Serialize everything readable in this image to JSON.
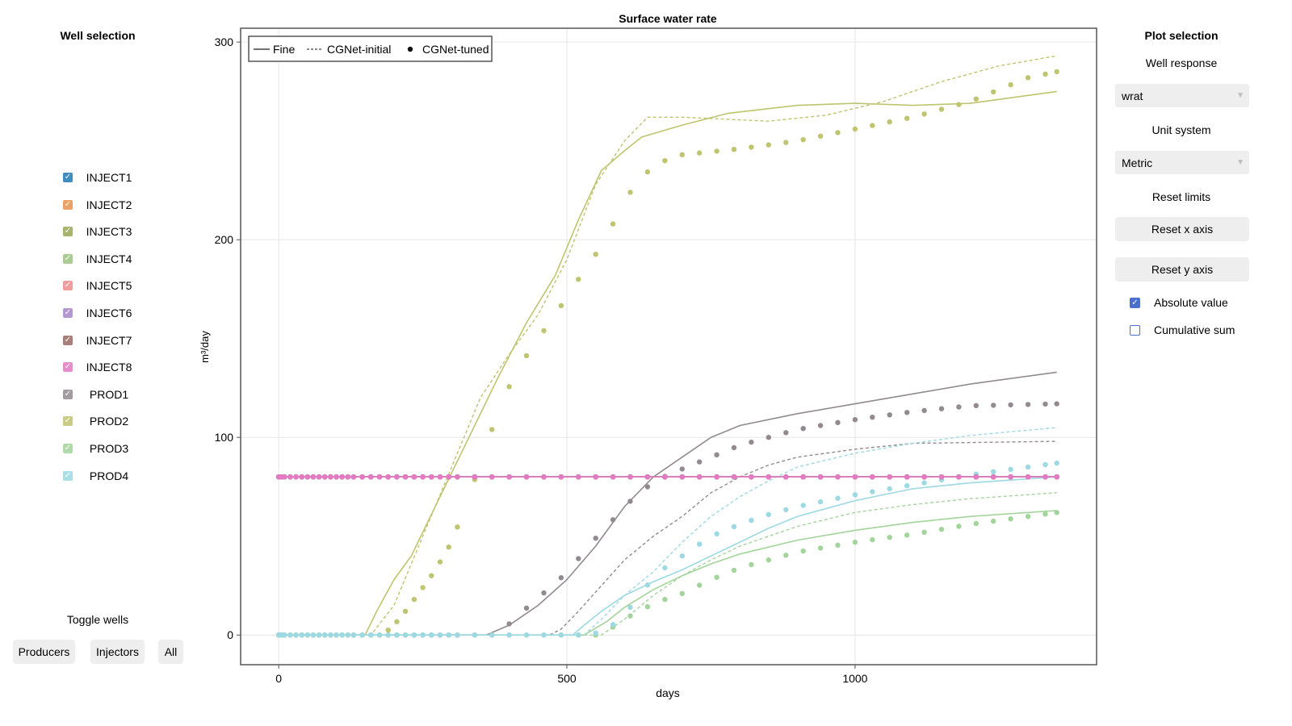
{
  "left_panel": {
    "title": "Well selection",
    "wells": [
      {
        "name": "INJECT1",
        "checked": true,
        "color": "#1f77b4"
      },
      {
        "name": "INJECT2",
        "checked": true,
        "color": "#e8924a"
      },
      {
        "name": "INJECT3",
        "checked": true,
        "color": "#98a854"
      },
      {
        "name": "INJECT4",
        "checked": true,
        "color": "#9cc37f"
      },
      {
        "name": "INJECT5",
        "checked": true,
        "color": "#f08c8c"
      },
      {
        "name": "INJECT6",
        "checked": true,
        "color": "#a986c9"
      },
      {
        "name": "INJECT7",
        "checked": true,
        "color": "#9a6a62"
      },
      {
        "name": "INJECT8",
        "checked": true,
        "color": "#e57ac4"
      },
      {
        "name": "PROD1",
        "checked": true,
        "color": "#938a8f"
      },
      {
        "name": "PROD2",
        "checked": true,
        "color": "#bfc46f"
      },
      {
        "name": "PROD3",
        "checked": true,
        "color": "#a3d49b"
      },
      {
        "name": "PROD4",
        "checked": true,
        "color": "#9dd9e2"
      }
    ],
    "toggle_title": "Toggle wells",
    "buttons": {
      "producers": "Producers",
      "injectors": "Injectors",
      "all": "All"
    }
  },
  "right_panel": {
    "title": "Plot selection",
    "well_response_label": "Well response",
    "well_response_value": "wrat",
    "unit_system_label": "Unit system",
    "unit_system_value": "Metric",
    "reset_limits_label": "Reset limits",
    "reset_x": "Reset x axis",
    "reset_y": "Reset y axis",
    "absolute_value": {
      "label": "Absolute value",
      "checked": true
    },
    "cumulative_sum": {
      "label": "Cumulative sum",
      "checked": false
    },
    "accent": "#4a6fd0"
  },
  "chart_data": {
    "type": "line",
    "title": "Surface water rate",
    "xlabel": "days",
    "ylabel": "m³/day",
    "xlim": [
      -66,
      1419
    ],
    "ylim": [
      -15,
      307
    ],
    "xticks": [
      0,
      500,
      1000
    ],
    "yticks": [
      0,
      100,
      200,
      300
    ],
    "grid": true,
    "legend": {
      "placement": "top-left",
      "entries": [
        {
          "label": "Fine",
          "style": "solid"
        },
        {
          "label": "CGNet-initial",
          "style": "dashed"
        },
        {
          "label": "CGNet-tuned",
          "style": "dots"
        }
      ]
    },
    "tuned_times": [
      0,
      1,
      3,
      5,
      10,
      20,
      30,
      40,
      50,
      60,
      70,
      80,
      90,
      100,
      110,
      120,
      130,
      145,
      160,
      175,
      190,
      205,
      220,
      235,
      250,
      265,
      280,
      295,
      310,
      340,
      370,
      400,
      430,
      460,
      490,
      520,
      550,
      580,
      610,
      640,
      670,
      700,
      730,
      760,
      790,
      820,
      850,
      880,
      910,
      940,
      970,
      1000,
      1030,
      1060,
      1090,
      1120,
      1150,
      1180,
      1210,
      1240,
      1270,
      1300,
      1330,
      1350
    ],
    "series": [
      {
        "name": "INJECT1",
        "fine": [
          [
            0,
            80
          ],
          [
            1350,
            80
          ]
        ],
        "initial": [
          [
            0,
            80
          ],
          [
            1350,
            80
          ]
        ],
        "tuned": [
          [
            0,
            80
          ],
          [
            1350,
            80
          ]
        ]
      },
      {
        "name": "INJECT2",
        "fine": [
          [
            0,
            80
          ],
          [
            1350,
            80
          ]
        ],
        "initial": [
          [
            0,
            80
          ],
          [
            1350,
            80
          ]
        ],
        "tuned": [
          [
            0,
            80
          ],
          [
            1350,
            80
          ]
        ]
      },
      {
        "name": "INJECT3",
        "fine": [
          [
            0,
            80
          ],
          [
            1350,
            80
          ]
        ],
        "initial": [
          [
            0,
            80
          ],
          [
            1350,
            80
          ]
        ],
        "tuned": [
          [
            0,
            80
          ],
          [
            1350,
            80
          ]
        ]
      },
      {
        "name": "INJECT4",
        "fine": [
          [
            0,
            80
          ],
          [
            1350,
            80
          ]
        ],
        "initial": [
          [
            0,
            80
          ],
          [
            1350,
            80
          ]
        ],
        "tuned": [
          [
            0,
            80
          ],
          [
            1350,
            80
          ]
        ]
      },
      {
        "name": "INJECT5",
        "fine": [
          [
            0,
            80
          ],
          [
            1350,
            80
          ]
        ],
        "initial": [
          [
            0,
            80
          ],
          [
            1350,
            80
          ]
        ],
        "tuned": [
          [
            0,
            80
          ],
          [
            1350,
            80
          ]
        ]
      },
      {
        "name": "INJECT6",
        "fine": [
          [
            0,
            80
          ],
          [
            1350,
            80
          ]
        ],
        "initial": [
          [
            0,
            80
          ],
          [
            1350,
            80
          ]
        ],
        "tuned": [
          [
            0,
            80
          ],
          [
            1350,
            80
          ]
        ]
      },
      {
        "name": "INJECT7",
        "fine": [
          [
            0,
            80
          ],
          [
            1350,
            80
          ]
        ],
        "initial": [
          [
            0,
            80
          ],
          [
            1350,
            80
          ]
        ],
        "tuned": [
          [
            0,
            80
          ],
          [
            1350,
            80
          ]
        ]
      },
      {
        "name": "INJECT8",
        "fine": [
          [
            0,
            80
          ],
          [
            1350,
            80
          ]
        ],
        "initial": [
          [
            0,
            80
          ],
          [
            1350,
            80
          ]
        ],
        "tuned": [
          [
            0,
            80
          ],
          [
            1350,
            80
          ]
        ]
      },
      {
        "name": "PROD1",
        "fine": [
          [
            0,
            0
          ],
          [
            360,
            0
          ],
          [
            400,
            5
          ],
          [
            450,
            15
          ],
          [
            500,
            28
          ],
          [
            550,
            45
          ],
          [
            600,
            65
          ],
          [
            650,
            80
          ],
          [
            700,
            90
          ],
          [
            750,
            100
          ],
          [
            800,
            106
          ],
          [
            900,
            112
          ],
          [
            1000,
            117
          ],
          [
            1100,
            122
          ],
          [
            1200,
            127
          ],
          [
            1350,
            133
          ]
        ],
        "initial": [
          [
            0,
            0
          ],
          [
            470,
            0
          ],
          [
            490,
            3
          ],
          [
            520,
            12
          ],
          [
            560,
            25
          ],
          [
            600,
            38
          ],
          [
            650,
            50
          ],
          [
            700,
            60
          ],
          [
            750,
            72
          ],
          [
            800,
            80
          ],
          [
            850,
            86
          ],
          [
            900,
            90
          ],
          [
            1000,
            94
          ],
          [
            1100,
            97
          ],
          [
            1350,
            98
          ]
        ],
        "tuned": [
          [
            0,
            0
          ],
          [
            370,
            0
          ],
          [
            390,
            3
          ],
          [
            420,
            11
          ],
          [
            450,
            19
          ],
          [
            480,
            26
          ],
          [
            510,
            35
          ],
          [
            540,
            46
          ],
          [
            570,
            55
          ],
          [
            600,
            65
          ],
          [
            630,
            73
          ],
          [
            660,
            79
          ],
          [
            700,
            84
          ],
          [
            750,
            90
          ],
          [
            800,
            96
          ],
          [
            850,
            100
          ],
          [
            900,
            104
          ],
          [
            1000,
            109
          ],
          [
            1100,
            113
          ],
          [
            1200,
            116
          ],
          [
            1350,
            117
          ]
        ]
      },
      {
        "name": "PROD2",
        "fine": [
          [
            0,
            0
          ],
          [
            150,
            0
          ],
          [
            170,
            12
          ],
          [
            200,
            28
          ],
          [
            230,
            40
          ],
          [
            280,
            70
          ],
          [
            330,
            100
          ],
          [
            380,
            130
          ],
          [
            430,
            158
          ],
          [
            480,
            182
          ],
          [
            520,
            210
          ],
          [
            560,
            235
          ],
          [
            600,
            245
          ],
          [
            630,
            252
          ],
          [
            700,
            258
          ],
          [
            780,
            264
          ],
          [
            900,
            268
          ],
          [
            1000,
            269
          ],
          [
            1100,
            268
          ],
          [
            1200,
            269
          ],
          [
            1300,
            273
          ],
          [
            1350,
            275
          ]
        ],
        "initial": [
          [
            0,
            0
          ],
          [
            160,
            0
          ],
          [
            200,
            15
          ],
          [
            250,
            50
          ],
          [
            300,
            85
          ],
          [
            350,
            120
          ],
          [
            400,
            142
          ],
          [
            450,
            162
          ],
          [
            500,
            190
          ],
          [
            550,
            228
          ],
          [
            600,
            250
          ],
          [
            640,
            262
          ],
          [
            700,
            262
          ],
          [
            850,
            260
          ],
          [
            950,
            263
          ],
          [
            1050,
            270
          ],
          [
            1150,
            280
          ],
          [
            1250,
            288
          ],
          [
            1350,
            293
          ]
        ],
        "tuned": [
          [
            0,
            0
          ],
          [
            180,
            0
          ],
          [
            200,
            5
          ],
          [
            220,
            12
          ],
          [
            240,
            20
          ],
          [
            270,
            32
          ],
          [
            300,
            47
          ],
          [
            330,
            70
          ],
          [
            360,
            96
          ],
          [
            390,
            120
          ],
          [
            420,
            137
          ],
          [
            450,
            150
          ],
          [
            480,
            162
          ],
          [
            510,
            176
          ],
          [
            540,
            188
          ],
          [
            570,
            202
          ],
          [
            600,
            220
          ],
          [
            630,
            232
          ],
          [
            660,
            239
          ],
          [
            700,
            243
          ],
          [
            800,
            246
          ],
          [
            900,
            250
          ],
          [
            1000,
            256
          ],
          [
            1100,
            262
          ],
          [
            1200,
            270
          ],
          [
            1300,
            282
          ],
          [
            1350,
            285
          ]
        ]
      },
      {
        "name": "PROD3",
        "fine": [
          [
            0,
            0
          ],
          [
            530,
            0
          ],
          [
            570,
            7
          ],
          [
            600,
            14
          ],
          [
            650,
            23
          ],
          [
            700,
            30
          ],
          [
            750,
            36
          ],
          [
            800,
            41
          ],
          [
            900,
            48
          ],
          [
            1000,
            53
          ],
          [
            1100,
            57
          ],
          [
            1200,
            60
          ],
          [
            1350,
            63
          ]
        ],
        "initial": [
          [
            0,
            0
          ],
          [
            560,
            0
          ],
          [
            600,
            8
          ],
          [
            650,
            20
          ],
          [
            700,
            30
          ],
          [
            750,
            38
          ],
          [
            800,
            45
          ],
          [
            900,
            55
          ],
          [
            1000,
            62
          ],
          [
            1100,
            66
          ],
          [
            1200,
            69
          ],
          [
            1350,
            72
          ]
        ],
        "tuned": [
          [
            0,
            0
          ],
          [
            560,
            0
          ],
          [
            580,
            4
          ],
          [
            600,
            8
          ],
          [
            630,
            13
          ],
          [
            660,
            17
          ],
          [
            700,
            21
          ],
          [
            750,
            28
          ],
          [
            800,
            34
          ],
          [
            900,
            42
          ],
          [
            1000,
            47
          ],
          [
            1100,
            51
          ],
          [
            1200,
            56
          ],
          [
            1350,
            62
          ]
        ]
      },
      {
        "name": "PROD4",
        "fine": [
          [
            0,
            0
          ],
          [
            510,
            0
          ],
          [
            530,
            5
          ],
          [
            560,
            12
          ],
          [
            600,
            20
          ],
          [
            650,
            27
          ],
          [
            700,
            33
          ],
          [
            750,
            40
          ],
          [
            800,
            47
          ],
          [
            850,
            54
          ],
          [
            900,
            60
          ],
          [
            1000,
            68
          ],
          [
            1100,
            74
          ],
          [
            1200,
            77
          ],
          [
            1350,
            80
          ]
        ],
        "initial": [
          [
            0,
            0
          ],
          [
            530,
            0
          ],
          [
            560,
            8
          ],
          [
            600,
            20
          ],
          [
            650,
            32
          ],
          [
            700,
            47
          ],
          [
            750,
            60
          ],
          [
            800,
            70
          ],
          [
            850,
            78
          ],
          [
            900,
            85
          ],
          [
            1000,
            92
          ],
          [
            1100,
            97
          ],
          [
            1200,
            101
          ],
          [
            1350,
            105
          ]
        ],
        "tuned": [
          [
            0,
            0
          ],
          [
            540,
            0
          ],
          [
            570,
            3
          ],
          [
            600,
            10
          ],
          [
            630,
            22
          ],
          [
            660,
            32
          ],
          [
            700,
            40
          ],
          [
            750,
            50
          ],
          [
            800,
            56
          ],
          [
            850,
            61
          ],
          [
            900,
            65
          ],
          [
            1000,
            71
          ],
          [
            1100,
            76
          ],
          [
            1200,
            81
          ],
          [
            1350,
            87
          ]
        ]
      }
    ]
  }
}
